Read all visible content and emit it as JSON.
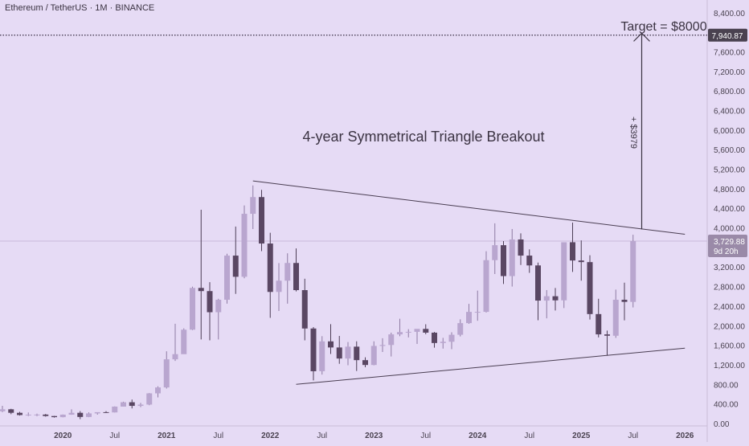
{
  "header": {
    "symbol_title": "Ethereum / TetherUS · 1M · BINANCE"
  },
  "colors": {
    "background": "#e6dbf5",
    "up_candle": "#b9a6cf",
    "down_candle": "#5a4763",
    "wick": "#4d3e56",
    "trendline": "#4a3e52",
    "text": "#3b3342",
    "axis_text": "#4a4250",
    "current_price_tag": "#9a8aa8",
    "target_tag": "#4a4250",
    "dotted_target": "#3a2f44"
  },
  "annotations": {
    "pattern_title": "4-year Symmetrical Triangle Breakout",
    "target_label": "Target = $8000",
    "gain_label": "+ $3979"
  },
  "price_tags": {
    "target_value": "7,940.87",
    "current_value": "3,729.88",
    "countdown": "9d 20h"
  },
  "chart_data": {
    "type": "candlestick",
    "title": "Ethereum / TetherUS · 1M · BINANCE",
    "timeframe": "1M",
    "y_axis_ticks": [
      "0.00",
      "400.00",
      "800.00",
      "1,200.00",
      "1,600.00",
      "2,000.00",
      "2,400.00",
      "2,800.00",
      "3,200.00",
      "3,600.00",
      "4,000.00",
      "4,400.00",
      "4,800.00",
      "5,200.00",
      "5,600.00",
      "6,000.00",
      "6,400.00",
      "6,800.00",
      "7,200.00",
      "7,600.00",
      "8,000.00",
      "8,400.00"
    ],
    "y_tick_values": [
      0,
      400,
      800,
      1200,
      1600,
      2000,
      2400,
      2800,
      3200,
      3600,
      4000,
      4400,
      4800,
      5200,
      5600,
      6000,
      6400,
      6800,
      7200,
      7600,
      8000,
      8400
    ],
    "ylim": [
      -50,
      8660
    ],
    "x_axis_labels": [
      {
        "label": "2020",
        "date": "2020-01"
      },
      {
        "label": "Jul",
        "date": "2020-07"
      },
      {
        "label": "2021",
        "date": "2021-01"
      },
      {
        "label": "Jul",
        "date": "2021-07"
      },
      {
        "label": "2022",
        "date": "2022-01"
      },
      {
        "label": "Jul",
        "date": "2022-07"
      },
      {
        "label": "2023",
        "date": "2023-01"
      },
      {
        "label": "Jul",
        "date": "2023-07"
      },
      {
        "label": "2024",
        "date": "2024-01"
      },
      {
        "label": "Jul",
        "date": "2024-07"
      },
      {
        "label": "2025",
        "date": "2025-01"
      },
      {
        "label": "Jul",
        "date": "2025-07"
      },
      {
        "label": "2026",
        "date": "2026-01"
      }
    ],
    "xlim": [
      "2019-06",
      "2026-06"
    ],
    "current_price": 3729.88,
    "target_price": 7940.87,
    "candles": [
      {
        "date": "2019-06",
        "open": 250,
        "high": 361,
        "low": 231,
        "close": 290
      },
      {
        "date": "2019-07",
        "open": 290,
        "high": 300,
        "low": 190,
        "close": 218
      },
      {
        "date": "2019-08",
        "open": 218,
        "high": 238,
        "low": 162,
        "close": 172
      },
      {
        "date": "2019-09",
        "open": 172,
        "high": 225,
        "low": 152,
        "close": 180
      },
      {
        "date": "2019-10",
        "open": 180,
        "high": 200,
        "low": 150,
        "close": 182
      },
      {
        "date": "2019-11",
        "open": 182,
        "high": 195,
        "low": 140,
        "close": 152
      },
      {
        "date": "2019-12",
        "open": 152,
        "high": 155,
        "low": 120,
        "close": 129
      },
      {
        "date": "2020-01",
        "open": 129,
        "high": 184,
        "low": 126,
        "close": 180
      },
      {
        "date": "2020-02",
        "open": 180,
        "high": 288,
        "low": 178,
        "close": 218
      },
      {
        "date": "2020-03",
        "open": 218,
        "high": 253,
        "low": 88,
        "close": 133
      },
      {
        "date": "2020-04",
        "open": 133,
        "high": 228,
        "low": 128,
        "close": 206
      },
      {
        "date": "2020-05",
        "open": 206,
        "high": 228,
        "low": 180,
        "close": 231
      },
      {
        "date": "2020-06",
        "open": 231,
        "high": 253,
        "low": 216,
        "close": 226
      },
      {
        "date": "2020-07",
        "open": 226,
        "high": 349,
        "low": 225,
        "close": 345
      },
      {
        "date": "2020-08",
        "open": 345,
        "high": 445,
        "low": 345,
        "close": 434
      },
      {
        "date": "2020-09",
        "open": 434,
        "high": 489,
        "low": 308,
        "close": 360
      },
      {
        "date": "2020-10",
        "open": 360,
        "high": 420,
        "low": 335,
        "close": 386
      },
      {
        "date": "2020-11",
        "open": 386,
        "high": 622,
        "low": 373,
        "close": 616
      },
      {
        "date": "2020-12",
        "open": 616,
        "high": 760,
        "low": 533,
        "close": 737
      },
      {
        "date": "2021-01",
        "open": 737,
        "high": 1476,
        "low": 714,
        "close": 1312
      },
      {
        "date": "2021-02",
        "open": 1312,
        "high": 2040,
        "low": 1280,
        "close": 1417
      },
      {
        "date": "2021-03",
        "open": 1417,
        "high": 1945,
        "low": 1436,
        "close": 1918
      },
      {
        "date": "2021-04",
        "open": 1918,
        "high": 2797,
        "low": 1910,
        "close": 2772
      },
      {
        "date": "2021-05",
        "open": 2772,
        "high": 4370,
        "low": 1719,
        "close": 2707
      },
      {
        "date": "2021-06",
        "open": 2707,
        "high": 2890,
        "low": 1700,
        "close": 2275
      },
      {
        "date": "2021-07",
        "open": 2275,
        "high": 2550,
        "low": 1718,
        "close": 2530
      },
      {
        "date": "2021-08",
        "open": 2530,
        "high": 3470,
        "low": 2450,
        "close": 3433
      },
      {
        "date": "2021-09",
        "open": 3433,
        "high": 4027,
        "low": 2650,
        "close": 3000
      },
      {
        "date": "2021-10",
        "open": 3000,
        "high": 4460,
        "low": 2970,
        "close": 4288
      },
      {
        "date": "2021-11",
        "open": 4288,
        "high": 4868,
        "low": 3976,
        "close": 4630
      },
      {
        "date": "2021-12",
        "open": 4630,
        "high": 4778,
        "low": 3524,
        "close": 3680
      },
      {
        "date": "2022-01",
        "open": 3680,
        "high": 3900,
        "low": 2160,
        "close": 2690
      },
      {
        "date": "2022-02",
        "open": 2690,
        "high": 3280,
        "low": 2300,
        "close": 2920
      },
      {
        "date": "2022-03",
        "open": 2920,
        "high": 3480,
        "low": 2450,
        "close": 3282
      },
      {
        "date": "2022-04",
        "open": 3282,
        "high": 3580,
        "low": 2700,
        "close": 2727
      },
      {
        "date": "2022-05",
        "open": 2727,
        "high": 2960,
        "low": 1700,
        "close": 1942
      },
      {
        "date": "2022-06",
        "open": 1942,
        "high": 1972,
        "low": 881,
        "close": 1068
      },
      {
        "date": "2022-07",
        "open": 1068,
        "high": 1785,
        "low": 1000,
        "close": 1679
      },
      {
        "date": "2022-08",
        "open": 1679,
        "high": 2030,
        "low": 1420,
        "close": 1554
      },
      {
        "date": "2022-09",
        "open": 1554,
        "high": 1790,
        "low": 1220,
        "close": 1328
      },
      {
        "date": "2022-10",
        "open": 1328,
        "high": 1665,
        "low": 1190,
        "close": 1571
      },
      {
        "date": "2022-11",
        "open": 1571,
        "high": 1680,
        "low": 1073,
        "close": 1295
      },
      {
        "date": "2022-12",
        "open": 1295,
        "high": 1353,
        "low": 1150,
        "close": 1196
      },
      {
        "date": "2023-01",
        "open": 1196,
        "high": 1680,
        "low": 1190,
        "close": 1586
      },
      {
        "date": "2023-02",
        "open": 1586,
        "high": 1743,
        "low": 1461,
        "close": 1605
      },
      {
        "date": "2023-03",
        "open": 1605,
        "high": 1857,
        "low": 1370,
        "close": 1822
      },
      {
        "date": "2023-04",
        "open": 1822,
        "high": 2142,
        "low": 1785,
        "close": 1869
      },
      {
        "date": "2023-05",
        "open": 1869,
        "high": 1928,
        "low": 1760,
        "close": 1874
      },
      {
        "date": "2023-06",
        "open": 1874,
        "high": 1930,
        "low": 1626,
        "close": 1934
      },
      {
        "date": "2023-07",
        "open": 1934,
        "high": 2029,
        "low": 1825,
        "close": 1857
      },
      {
        "date": "2023-08",
        "open": 1857,
        "high": 1870,
        "low": 1550,
        "close": 1645
      },
      {
        "date": "2023-09",
        "open": 1645,
        "high": 1751,
        "low": 1531,
        "close": 1671
      },
      {
        "date": "2023-10",
        "open": 1671,
        "high": 1865,
        "low": 1520,
        "close": 1814
      },
      {
        "date": "2023-11",
        "open": 1814,
        "high": 2130,
        "low": 1780,
        "close": 2052
      },
      {
        "date": "2023-12",
        "open": 2052,
        "high": 2445,
        "low": 2040,
        "close": 2282
      },
      {
        "date": "2024-01",
        "open": 2282,
        "high": 2717,
        "low": 2100,
        "close": 2283
      },
      {
        "date": "2024-02",
        "open": 2283,
        "high": 3522,
        "low": 2270,
        "close": 3340
      },
      {
        "date": "2024-03",
        "open": 3340,
        "high": 4093,
        "low": 3056,
        "close": 3646
      },
      {
        "date": "2024-04",
        "open": 3646,
        "high": 3730,
        "low": 2852,
        "close": 3014
      },
      {
        "date": "2024-05",
        "open": 3014,
        "high": 3977,
        "low": 2800,
        "close": 3763
      },
      {
        "date": "2024-06",
        "open": 3763,
        "high": 3887,
        "low": 3240,
        "close": 3433
      },
      {
        "date": "2024-07",
        "open": 3433,
        "high": 3560,
        "low": 3080,
        "close": 3232
      },
      {
        "date": "2024-08",
        "open": 3232,
        "high": 3290,
        "low": 2111,
        "close": 2513
      },
      {
        "date": "2024-09",
        "open": 2513,
        "high": 2728,
        "low": 2150,
        "close": 2602
      },
      {
        "date": "2024-10",
        "open": 2602,
        "high": 2770,
        "low": 2310,
        "close": 2518
      },
      {
        "date": "2024-11",
        "open": 2518,
        "high": 3685,
        "low": 2360,
        "close": 3706
      },
      {
        "date": "2024-12",
        "open": 3706,
        "high": 4108,
        "low": 3100,
        "close": 3333
      },
      {
        "date": "2025-01",
        "open": 3333,
        "high": 3744,
        "low": 2920,
        "close": 3300
      },
      {
        "date": "2025-02",
        "open": 3300,
        "high": 3440,
        "low": 2125,
        "close": 2237
      },
      {
        "date": "2025-03",
        "open": 2237,
        "high": 2550,
        "low": 1760,
        "close": 1822
      },
      {
        "date": "2025-04",
        "open": 1822,
        "high": 1900,
        "low": 1385,
        "close": 1794
      },
      {
        "date": "2025-05",
        "open": 1794,
        "high": 2738,
        "low": 1750,
        "close": 2530
      },
      {
        "date": "2025-06",
        "open": 2530,
        "high": 2880,
        "low": 2110,
        "close": 2486
      },
      {
        "date": "2025-07",
        "open": 2486,
        "high": 3860,
        "low": 2373,
        "close": 3729.88
      }
    ],
    "trendlines": [
      {
        "name": "upper",
        "from": {
          "date": "2021-11",
          "price": 4960
        },
        "to": {
          "date": "2026-01",
          "price": 3870
        }
      },
      {
        "name": "lower",
        "from": {
          "date": "2022-04",
          "price": 800
        },
        "to": {
          "date": "2026-01",
          "price": 1540
        }
      }
    ],
    "breakout_arrow": {
      "date": "2025-08",
      "from_price": 3970,
      "to_price": 7980
    }
  }
}
